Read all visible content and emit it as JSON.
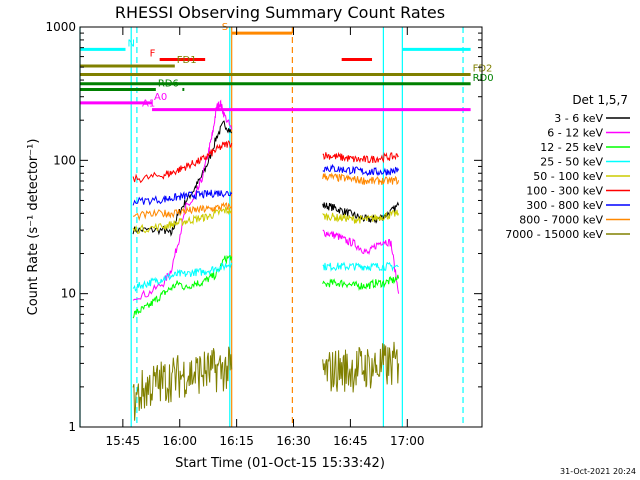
{
  "chart_data": {
    "type": "line",
    "title": "RHESSI Observing Summary Count Rates",
    "xlabel": "Start Time (01-Oct-15 15:33:42)",
    "ylabel": "Count Rate (s⁻¹ detector⁻¹)",
    "yscale": "log",
    "ylim": [
      1,
      1000
    ],
    "xlim_minutes": [
      0,
      106
    ],
    "x_ticks": [
      {
        "minute": 11.3,
        "label": "15:45"
      },
      {
        "minute": 26.3,
        "label": "16:00"
      },
      {
        "minute": 41.3,
        "label": "16:15"
      },
      {
        "minute": 56.3,
        "label": "16:30"
      },
      {
        "minute": 71.3,
        "label": "16:45"
      },
      {
        "minute": 86.3,
        "label": "17:00"
      }
    ],
    "y_ticks": [
      {
        "value": 1,
        "label": "1"
      },
      {
        "value": 10,
        "label": "10"
      },
      {
        "value": 100,
        "label": "100"
      },
      {
        "value": 1000,
        "label": "1000"
      }
    ],
    "legend_title": "Det 1,5,7",
    "legend_position": "right",
    "grid": false,
    "gap_minutes": [
      40,
      64
    ],
    "series": [
      {
        "name": "3 - 6 keV",
        "color": "#000000",
        "points": [
          [
            14,
            30
          ],
          [
            18,
            30
          ],
          [
            22,
            30
          ],
          [
            24,
            28
          ],
          [
            26,
            40
          ],
          [
            28,
            50
          ],
          [
            30,
            60
          ],
          [
            32,
            75
          ],
          [
            34,
            100
          ],
          [
            36,
            150
          ],
          [
            38,
            190
          ],
          [
            40,
            160
          ],
          [
            64,
            46
          ],
          [
            66,
            45
          ],
          [
            68,
            43
          ],
          [
            70,
            41
          ],
          [
            72,
            39
          ],
          [
            74,
            37
          ],
          [
            76,
            36
          ],
          [
            78,
            36
          ],
          [
            80,
            38
          ],
          [
            82,
            41
          ],
          [
            84,
            46
          ]
        ]
      },
      {
        "name": "6 - 12 keV",
        "color": "#ff00ff",
        "points": [
          [
            14,
            9.5
          ],
          [
            18,
            10
          ],
          [
            22,
            12
          ],
          [
            24,
            15
          ],
          [
            26,
            25
          ],
          [
            28,
            45
          ],
          [
            30,
            50
          ],
          [
            32,
            70
          ],
          [
            34,
            120
          ],
          [
            35,
            160
          ],
          [
            36,
            250
          ],
          [
            37,
            270
          ],
          [
            38,
            220
          ],
          [
            40,
            170
          ],
          [
            64,
            29
          ],
          [
            66,
            28
          ],
          [
            68,
            27
          ],
          [
            70,
            25
          ],
          [
            72,
            24
          ],
          [
            74,
            22
          ],
          [
            76,
            20
          ],
          [
            78,
            23
          ],
          [
            80,
            25
          ],
          [
            82,
            24
          ],
          [
            84,
            10
          ]
        ]
      },
      {
        "name": "12 - 25 keV",
        "color": "#00ff00",
        "points": [
          [
            14,
            7
          ],
          [
            16,
            7.5
          ],
          [
            18,
            8
          ],
          [
            20,
            9
          ],
          [
            22,
            10
          ],
          [
            24,
            11
          ],
          [
            26,
            12
          ],
          [
            28,
            11
          ],
          [
            30,
            12
          ],
          [
            32,
            12
          ],
          [
            34,
            13
          ],
          [
            36,
            14
          ],
          [
            38,
            18
          ],
          [
            40,
            19
          ],
          [
            64,
            11.5
          ],
          [
            66,
            12
          ],
          [
            68,
            12
          ],
          [
            70,
            12
          ],
          [
            72,
            11.5
          ],
          [
            74,
            11.5
          ],
          [
            76,
            11.5
          ],
          [
            78,
            12
          ],
          [
            80,
            12
          ],
          [
            82,
            12.5
          ],
          [
            84,
            13
          ]
        ]
      },
      {
        "name": "25 - 50 keV",
        "color": "#00ffff",
        "points": [
          [
            14,
            11
          ],
          [
            16,
            11.5
          ],
          [
            18,
            12
          ],
          [
            20,
            12.5
          ],
          [
            22,
            13
          ],
          [
            24,
            13.5
          ],
          [
            26,
            14
          ],
          [
            28,
            14
          ],
          [
            30,
            14.5
          ],
          [
            32,
            14.5
          ],
          [
            34,
            15
          ],
          [
            36,
            15.5
          ],
          [
            38,
            16
          ],
          [
            40,
            17
          ],
          [
            64,
            16
          ],
          [
            66,
            16
          ],
          [
            68,
            16
          ],
          [
            70,
            16
          ],
          [
            72,
            16
          ],
          [
            74,
            16
          ],
          [
            76,
            16
          ],
          [
            78,
            16
          ],
          [
            80,
            16
          ],
          [
            82,
            16
          ],
          [
            84,
            16
          ]
        ]
      },
      {
        "name": "50 - 100 keV",
        "color": "#cccc00",
        "points": [
          [
            14,
            30
          ],
          [
            18,
            31
          ],
          [
            22,
            32
          ],
          [
            24,
            33
          ],
          [
            26,
            34
          ],
          [
            28,
            35
          ],
          [
            30,
            36
          ],
          [
            32,
            37
          ],
          [
            34,
            38
          ],
          [
            36,
            40
          ],
          [
            38,
            42
          ],
          [
            40,
            42
          ],
          [
            64,
            38
          ],
          [
            66,
            38
          ],
          [
            68,
            37
          ],
          [
            70,
            37
          ],
          [
            72,
            36
          ],
          [
            74,
            36
          ],
          [
            76,
            36
          ],
          [
            78,
            37
          ],
          [
            80,
            38
          ],
          [
            82,
            39
          ],
          [
            84,
            40
          ]
        ]
      },
      {
        "name": "100 - 300 keV",
        "color": "#ff0000",
        "points": [
          [
            14,
            72
          ],
          [
            18,
            74
          ],
          [
            22,
            78
          ],
          [
            24,
            80
          ],
          [
            26,
            85
          ],
          [
            28,
            90
          ],
          [
            30,
            95
          ],
          [
            32,
            100
          ],
          [
            34,
            110
          ],
          [
            36,
            120
          ],
          [
            38,
            130
          ],
          [
            40,
            135
          ],
          [
            64,
            110
          ],
          [
            66,
            108
          ],
          [
            68,
            106
          ],
          [
            70,
            104
          ],
          [
            72,
            102
          ],
          [
            74,
            101
          ],
          [
            76,
            101
          ],
          [
            78,
            103
          ],
          [
            80,
            105
          ],
          [
            82,
            106
          ],
          [
            84,
            108
          ]
        ]
      },
      {
        "name": "300 - 800 keV",
        "color": "#0000ff",
        "points": [
          [
            14,
            49
          ],
          [
            18,
            50
          ],
          [
            22,
            51
          ],
          [
            24,
            52
          ],
          [
            26,
            53
          ],
          [
            28,
            54
          ],
          [
            30,
            55
          ],
          [
            32,
            55
          ],
          [
            34,
            56
          ],
          [
            36,
            57
          ],
          [
            38,
            57
          ],
          [
            40,
            56
          ],
          [
            64,
            88
          ],
          [
            66,
            87
          ],
          [
            68,
            86
          ],
          [
            70,
            85
          ],
          [
            72,
            84
          ],
          [
            74,
            83
          ],
          [
            76,
            82
          ],
          [
            78,
            82
          ],
          [
            80,
            82
          ],
          [
            82,
            83
          ],
          [
            84,
            84
          ]
        ]
      },
      {
        "name": "800 - 7000 keV",
        "color": "#ff8800",
        "points": [
          [
            14,
            38
          ],
          [
            18,
            39
          ],
          [
            22,
            40
          ],
          [
            24,
            40
          ],
          [
            26,
            41
          ],
          [
            28,
            42
          ],
          [
            30,
            42
          ],
          [
            32,
            43
          ],
          [
            34,
            43
          ],
          [
            36,
            44
          ],
          [
            38,
            45
          ],
          [
            40,
            45
          ],
          [
            64,
            76
          ],
          [
            66,
            75
          ],
          [
            68,
            74
          ],
          [
            70,
            73
          ],
          [
            72,
            72
          ],
          [
            74,
            71
          ],
          [
            76,
            70
          ],
          [
            78,
            70
          ],
          [
            80,
            70
          ],
          [
            82,
            70
          ],
          [
            84,
            71
          ]
        ]
      },
      {
        "name": "7000 - 15000 keV",
        "color": "#808000",
        "points": [
          [
            14,
            1.5
          ],
          [
            16,
            1.8
          ],
          [
            18,
            2.0
          ],
          [
            20,
            2.1
          ],
          [
            22,
            2.2
          ],
          [
            24,
            2.3
          ],
          [
            26,
            2.4
          ],
          [
            28,
            2.5
          ],
          [
            30,
            2.5
          ],
          [
            32,
            2.6
          ],
          [
            34,
            2.6
          ],
          [
            36,
            2.7
          ],
          [
            38,
            2.7
          ],
          [
            40,
            2.7
          ],
          [
            64,
            2.6
          ],
          [
            66,
            2.6
          ],
          [
            68,
            2.7
          ],
          [
            70,
            2.7
          ],
          [
            72,
            2.7
          ],
          [
            74,
            2.8
          ],
          [
            76,
            2.8
          ],
          [
            78,
            2.8
          ],
          [
            80,
            2.9
          ],
          [
            82,
            2.9
          ],
          [
            84,
            3.0
          ]
        ]
      }
    ],
    "flags": [
      {
        "label": "N",
        "color": "#00ffff",
        "segments": [
          [
            0,
            12
          ],
          [
            85,
            103
          ]
        ],
        "level": 680
      },
      {
        "label": "S",
        "color": "#ff8800",
        "segments": [
          [
            40,
            56
          ]
        ],
        "level": 900
      },
      {
        "label": "F",
        "color": "#ff0000",
        "segments": [
          [
            21,
            33
          ],
          [
            69,
            77
          ]
        ],
        "level": 570
      },
      {
        "label": "FD1",
        "color": "#808000",
        "segments": [
          [
            0,
            25
          ]
        ],
        "level": 510
      },
      {
        "label": "FD2",
        "color": "#808000",
        "segments": [
          [
            0,
            103
          ]
        ],
        "level": 440
      },
      {
        "label": "RD0",
        "color": "#008000",
        "segments": [
          [
            0,
            103
          ]
        ],
        "level": 375
      },
      {
        "label": "RD6",
        "color": "#008000",
        "segments": [
          [
            0,
            20
          ],
          [
            27,
            27.5
          ]
        ],
        "level": 340
      },
      {
        "label": "A0",
        "color": "#ff00ff",
        "segments": [
          [
            0,
            19
          ]
        ],
        "level": 270
      },
      {
        "label": "A1",
        "color": "#ff00ff",
        "segments": [
          [
            19,
            103
          ]
        ],
        "level": 240
      }
    ],
    "vertical_markers": [
      {
        "minute": 0,
        "color": "#00ffff",
        "style": "solid"
      },
      {
        "minute": 13.5,
        "color": "#00ffff",
        "style": "solid"
      },
      {
        "minute": 15,
        "color": "#00ffff",
        "style": "dashed"
      },
      {
        "minute": 39.5,
        "color": "#00ffff",
        "style": "solid"
      },
      {
        "minute": 40,
        "color": "#ff8800",
        "style": "solid"
      },
      {
        "minute": 56,
        "color": "#ff8800",
        "style": "dashed"
      },
      {
        "minute": 80,
        "color": "#00ffff",
        "style": "solid"
      },
      {
        "minute": 85,
        "color": "#00ffff",
        "style": "solid"
      },
      {
        "minute": 101,
        "color": "#00ffff",
        "style": "dashed"
      }
    ],
    "timestamp": "31-Oct-2021 20:24"
  }
}
